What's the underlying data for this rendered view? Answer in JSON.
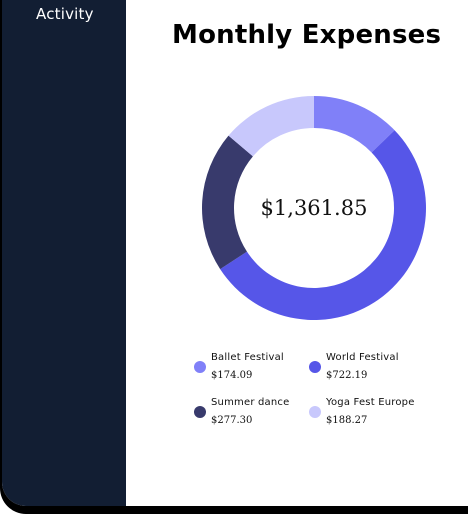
{
  "sidebar": {
    "items": [
      {
        "label": "Activity"
      }
    ]
  },
  "main": {
    "title": "Monthly Expenses",
    "total": "$1,361.85"
  },
  "legend": [
    {
      "name": "Ballet Festival",
      "value": "$174.09",
      "color": "#8080f8"
    },
    {
      "name": "World Festival",
      "value": "$722.19",
      "color": "#5656e8"
    },
    {
      "name": "Summer dance",
      "value": "$277.30",
      "color": "#383a6c"
    },
    {
      "name": "Yoga Fest Europe",
      "value": "$188.27",
      "color": "#c8c8fc"
    }
  ],
  "chart_data": {
    "type": "pie",
    "categories": [
      "Ballet Festival",
      "World Festival",
      "Summer dance",
      "Yoga Fest Europe"
    ],
    "values": [
      174.09,
      722.19,
      277.3,
      188.27
    ],
    "colors": [
      "#8080f8",
      "#5656e8",
      "#383a6c",
      "#c8c8fc"
    ],
    "center_label": "$1,361.85"
  }
}
